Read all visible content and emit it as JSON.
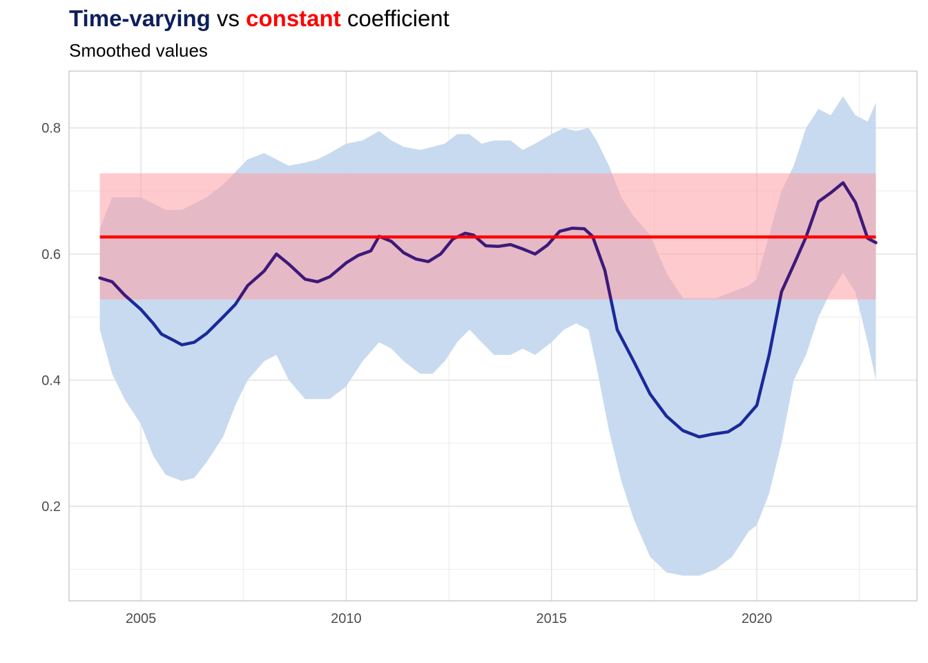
{
  "header": {
    "title_part1": "Time-varying",
    "title_part2": " vs ",
    "title_part3": "constant",
    "title_part4": " coefficient",
    "subtitle": "Smoothed values"
  },
  "colors": {
    "time_varying": "#0d1f5c",
    "constant": "#ff0000",
    "tv_band": "#c5d8ee",
    "const_band": "#ff9fa6",
    "line_start": "#1a2a99",
    "line_inside_band": "#3d1a78"
  },
  "chart_data": {
    "type": "line",
    "title": "Time-varying vs constant coefficient",
    "subtitle": "Smoothed values",
    "xlabel": "",
    "ylabel": "",
    "xlim": [
      2003.25,
      2023.9
    ],
    "ylim": [
      0.05,
      0.89
    ],
    "x_ticks": [
      2005,
      2010,
      2015,
      2020
    ],
    "y_ticks": [
      0.2,
      0.4,
      0.6,
      0.8
    ],
    "x_tick_labels": [
      "2005",
      "2010",
      "2015",
      "2020"
    ],
    "y_tick_labels": [
      "0.2",
      "0.4",
      "0.6",
      "0.8"
    ],
    "grid": true,
    "legend": "none",
    "series": [
      {
        "values_note": "time-varying coefficient (smoothed)",
        "x": [
          2004.0,
          2004.3,
          2004.6,
          2005.0,
          2005.3,
          2005.5,
          2005.8,
          2006.0,
          2006.3,
          2006.6,
          2007.0,
          2007.3,
          2007.6,
          2008.0,
          2008.3,
          2008.6,
          2009.0,
          2009.3,
          2009.6,
          2010.0,
          2010.3,
          2010.6,
          2010.8,
          2011.1,
          2011.4,
          2011.7,
          2012.0,
          2012.3,
          2012.6,
          2012.9,
          2013.1,
          2013.4,
          2013.7,
          2014.0,
          2014.3,
          2014.6,
          2014.9,
          2015.2,
          2015.5,
          2015.8,
          2016.0,
          2016.3,
          2016.6,
          2017.0,
          2017.4,
          2017.8,
          2018.2,
          2018.6,
          2018.9,
          2019.3,
          2019.6,
          2020.0,
          2020.3,
          2020.6,
          2020.9,
          2021.2,
          2021.5,
          2021.8,
          2022.1,
          2022.4,
          2022.7,
          2022.9
        ],
        "y": [
          0.562,
          0.556,
          0.535,
          0.512,
          0.49,
          0.473,
          0.463,
          0.456,
          0.46,
          0.474,
          0.5,
          0.52,
          0.55,
          0.573,
          0.6,
          0.584,
          0.56,
          0.556,
          0.564,
          0.586,
          0.598,
          0.605,
          0.628,
          0.62,
          0.602,
          0.592,
          0.588,
          0.6,
          0.624,
          0.633,
          0.63,
          0.613,
          0.612,
          0.615,
          0.608,
          0.6,
          0.614,
          0.636,
          0.641,
          0.64,
          0.628,
          0.574,
          0.48,
          0.43,
          0.378,
          0.343,
          0.32,
          0.31,
          0.314,
          0.318,
          0.33,
          0.36,
          0.44,
          0.54,
          0.583,
          0.627,
          0.683,
          0.697,
          0.713,
          0.682,
          0.625,
          0.618
        ]
      },
      {
        "values_note": "time-varying band lower",
        "x": [
          2004.0,
          2004.3,
          2004.6,
          2005.0,
          2005.3,
          2005.6,
          2006.0,
          2006.3,
          2006.6,
          2007.0,
          2007.3,
          2007.6,
          2008.0,
          2008.3,
          2008.6,
          2009.0,
          2009.3,
          2009.6,
          2010.0,
          2010.4,
          2010.8,
          2011.1,
          2011.4,
          2011.8,
          2012.1,
          2012.4,
          2012.7,
          2013.0,
          2013.3,
          2013.6,
          2014.0,
          2014.3,
          2014.6,
          2015.0,
          2015.3,
          2015.6,
          2015.9,
          2016.1,
          2016.4,
          2016.7,
          2017.0,
          2017.4,
          2017.8,
          2018.2,
          2018.6,
          2019.0,
          2019.4,
          2019.8,
          2020.0,
          2020.3,
          2020.6,
          2020.9,
          2021.2,
          2021.5,
          2021.8,
          2022.1,
          2022.4,
          2022.7,
          2022.9
        ],
        "y": [
          0.48,
          0.41,
          0.37,
          0.33,
          0.28,
          0.25,
          0.24,
          0.245,
          0.27,
          0.31,
          0.36,
          0.4,
          0.43,
          0.44,
          0.4,
          0.37,
          0.37,
          0.37,
          0.39,
          0.43,
          0.46,
          0.45,
          0.43,
          0.41,
          0.41,
          0.43,
          0.46,
          0.48,
          0.46,
          0.44,
          0.44,
          0.45,
          0.44,
          0.46,
          0.48,
          0.49,
          0.48,
          0.42,
          0.32,
          0.24,
          0.18,
          0.12,
          0.095,
          0.09,
          0.09,
          0.1,
          0.12,
          0.16,
          0.17,
          0.22,
          0.3,
          0.4,
          0.44,
          0.5,
          0.54,
          0.57,
          0.54,
          0.46,
          0.4
        ]
      },
      {
        "values_note": "time-varying band upper",
        "x": [
          2004.0,
          2004.3,
          2004.6,
          2005.0,
          2005.3,
          2005.6,
          2006.0,
          2006.3,
          2006.6,
          2007.0,
          2007.3,
          2007.6,
          2008.0,
          2008.3,
          2008.6,
          2009.0,
          2009.3,
          2009.6,
          2010.0,
          2010.4,
          2010.8,
          2011.1,
          2011.4,
          2011.8,
          2012.1,
          2012.4,
          2012.7,
          2013.0,
          2013.3,
          2013.6,
          2014.0,
          2014.3,
          2014.6,
          2015.0,
          2015.3,
          2015.6,
          2015.9,
          2016.1,
          2016.4,
          2016.7,
          2017.0,
          2017.4,
          2017.8,
          2018.2,
          2018.6,
          2019.0,
          2019.4,
          2019.8,
          2020.0,
          2020.3,
          2020.6,
          2020.9,
          2021.2,
          2021.5,
          2021.8,
          2022.1,
          2022.4,
          2022.7,
          2022.9
        ],
        "y": [
          0.64,
          0.69,
          0.69,
          0.69,
          0.68,
          0.67,
          0.67,
          0.68,
          0.69,
          0.71,
          0.73,
          0.75,
          0.76,
          0.75,
          0.74,
          0.745,
          0.75,
          0.76,
          0.775,
          0.78,
          0.795,
          0.78,
          0.77,
          0.765,
          0.77,
          0.775,
          0.79,
          0.79,
          0.775,
          0.78,
          0.78,
          0.765,
          0.775,
          0.79,
          0.8,
          0.795,
          0.8,
          0.78,
          0.74,
          0.69,
          0.66,
          0.63,
          0.57,
          0.53,
          0.53,
          0.53,
          0.54,
          0.55,
          0.56,
          0.63,
          0.7,
          0.74,
          0.8,
          0.83,
          0.82,
          0.85,
          0.82,
          0.81,
          0.84
        ]
      },
      {
        "values_note": "constant coefficient",
        "x": [
          2004.0,
          2022.9
        ],
        "y": [
          0.627,
          0.627
        ]
      },
      {
        "values_note": "constant band",
        "x": [
          2004.0,
          2022.9
        ],
        "y_low": [
          0.528,
          0.528
        ],
        "y_high": [
          0.728,
          0.728
        ]
      }
    ]
  }
}
